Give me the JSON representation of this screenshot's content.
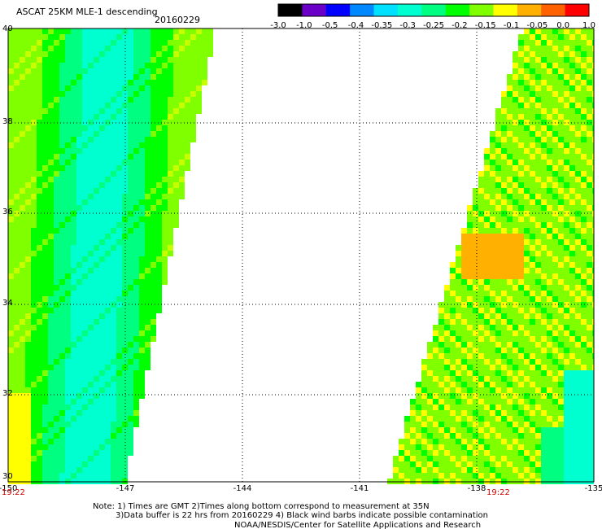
{
  "header": {
    "title": "ASCAT 25KM MLE-1 descending",
    "date": "20160229"
  },
  "colorbar": {
    "labels": [
      "-3.0",
      "-1.0",
      "-0.5",
      "-0.4",
      "-0.35",
      "-0.3",
      "-0.25",
      "-0.2",
      "-0.15",
      "-0.1",
      "-0.05",
      "0.0",
      "1.0"
    ],
    "colors": [
      "#000000",
      "#6a00c8",
      "#0000ff",
      "#0088ff",
      "#00e0ff",
      "#00ffd0",
      "#00ff80",
      "#00ff00",
      "#80ff00",
      "#ffff00",
      "#ffb000",
      "#ff6000",
      "#ff0000"
    ]
  },
  "map": {
    "lon_ticks": [
      "-150",
      "-147",
      "-144",
      "-141",
      "-138",
      "-135"
    ],
    "lat_ticks": [
      "40",
      "38",
      "36",
      "34",
      "32",
      "30"
    ],
    "lon_range": [
      -150,
      -135
    ],
    "lat_range": [
      30,
      40
    ],
    "grid": true,
    "pass_times": [
      "19:22",
      "19:22"
    ]
  },
  "notes": {
    "line1": "Note: 1) Times are GMT 2)Times along bottom correspond to measurement at 35N",
    "line2": "3)Data buffer is 22 hrs from 20160229 4) Black wind barbs indicate possible contamination",
    "line3": "NOAA/NESDIS/Center for Satellite Applications and Research"
  }
}
